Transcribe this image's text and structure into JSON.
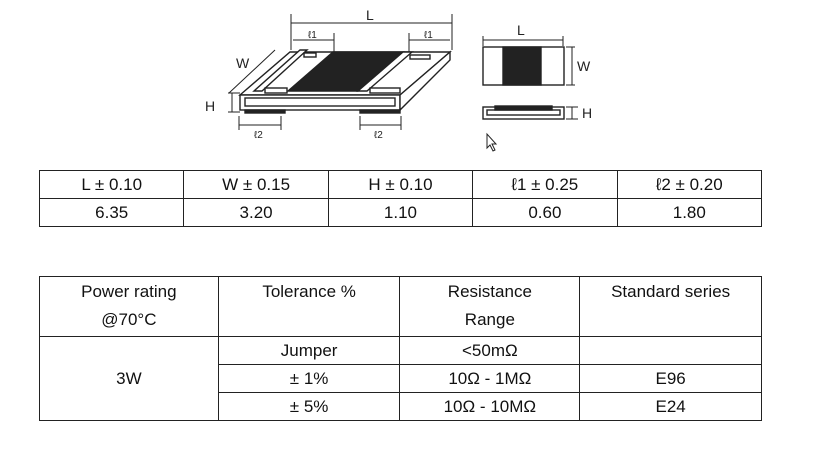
{
  "diagram": {
    "labels": {
      "L": "L",
      "W": "W",
      "H": "H",
      "l1": "ℓ1",
      "l2": "ℓ2"
    }
  },
  "dimensions_table": {
    "headers": [
      "L ± 0.10",
      "W ± 0.15",
      "H ± 0.10",
      "ℓ1 ± 0.25",
      "ℓ2 ± 0.20"
    ],
    "values": [
      "6.35",
      "3.20",
      "1.10",
      "0.60",
      "1.80"
    ]
  },
  "spec_table": {
    "headers": [
      "Power rating\n@70°C",
      "Tolerance %",
      "Resistance\nRange",
      "Standard series"
    ],
    "header_lines": [
      [
        "Power rating",
        "@70°C"
      ],
      [
        "Tolerance %"
      ],
      [
        "Resistance",
        "Range"
      ],
      [
        "Standard series"
      ]
    ],
    "power": "3W",
    "rows": [
      {
        "tolerance": "Jumper",
        "range": "<50mΩ",
        "series": ""
      },
      {
        "tolerance": "± 1%",
        "range": "10Ω - 1MΩ",
        "series": "E96"
      },
      {
        "tolerance": "± 5%",
        "range": "10Ω - 10MΩ",
        "series": "E24"
      }
    ]
  }
}
